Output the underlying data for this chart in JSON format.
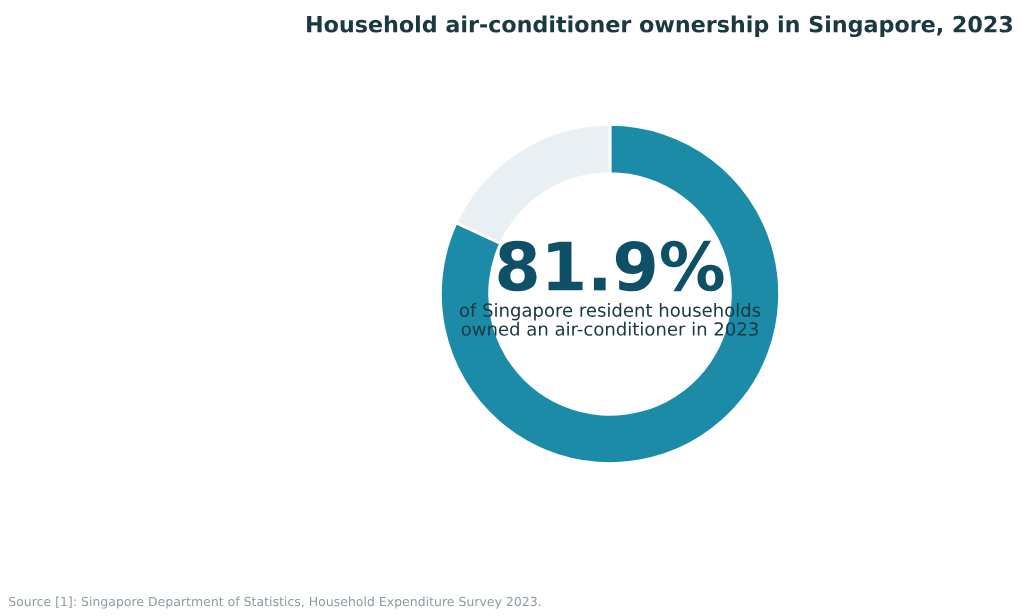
{
  "chart_data": {
    "type": "donut",
    "title": "Household air-conditioner ownership in Singapore, 2023",
    "categories": [
      null,
      null
    ],
    "values": [
      81.9,
      18.1
    ],
    "colors": [
      "#1b8ba8",
      "#e8f0f4"
    ],
    "value_labels": [
      "81.9%",
      null
    ],
    "annotations": [
      "of Singapore resident households\nowned an air-conditioner in 2023",
      "Source [1]: Singapore Department of Statistics, Household Expenditure Survey 2023."
    ],
    "legend": false
  }
}
